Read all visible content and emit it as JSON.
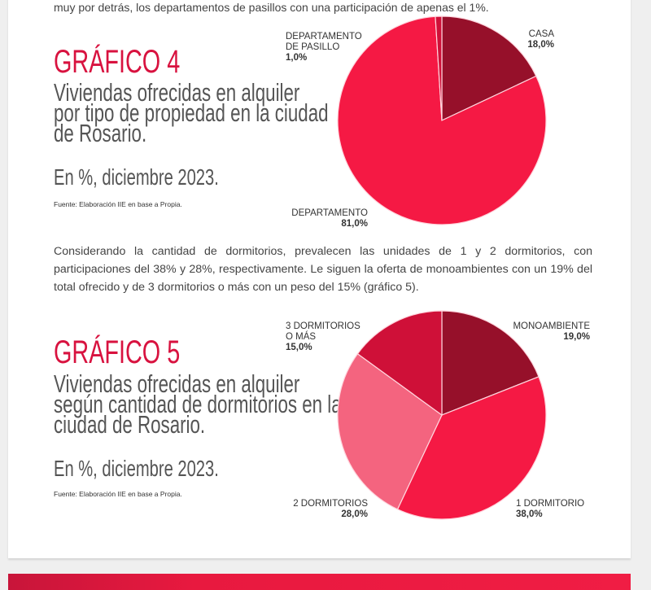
{
  "intro_text": "muy por detrás, los departamentos de pasillos con una participación de apenas el 1%.",
  "grafico4": {
    "title": "GRÁFICO 4",
    "subtitle_lines": [
      "Viviendas ofrecidas en alquiler",
      "por tipo de propiedad en la ciudad",
      "de Rosario."
    ],
    "unit": "En %, diciembre 2023.",
    "source": "Fuente: Elaboración IIE en base a Propia."
  },
  "paragraph": "Considerando la cantidad de dormitorios, prevalecen las unidades de 1 y 2 dormitorios, con participaciones del 38% y 28%, respectivamente. Le siguen la oferta de monoambientes con un 19% del total ofrecido y de 3 dormitorios o más con un peso del 15% (gráfico 5).",
  "grafico5": {
    "title": "GRÁFICO 5",
    "subtitle_lines": [
      "Viviendas ofrecidas en alquiler",
      "según cantidad de dormitorios en la",
      "ciudad de Rosario."
    ],
    "unit": "En %, diciembre 2023.",
    "source": "Fuente: Elaboración IIE en base a Propia."
  },
  "chart_data": [
    {
      "type": "pie",
      "title": "GRÁFICO 4",
      "start": "12 o'clock, clockwise",
      "slices": [
        {
          "label": [
            "CASA"
          ],
          "value": 18.0,
          "value_label": "18,0%",
          "color": "#96102a"
        },
        {
          "label": [
            "DEPARTAMENTO"
          ],
          "value": 81.0,
          "value_label": "81,0%",
          "color": "#f51944"
        },
        {
          "label": [
            "DEPARTAMENTO",
            "DE PASILLO"
          ],
          "value": 1.0,
          "value_label": "1,0%",
          "color": "#cf1038"
        }
      ]
    },
    {
      "type": "pie",
      "title": "GRÁFICO 5",
      "start": "12 o'clock, clockwise",
      "slices": [
        {
          "label": [
            "MONOAMBIENTE"
          ],
          "value": 19.0,
          "value_label": "19,0%",
          "color": "#96102a"
        },
        {
          "label": [
            "1 DORMITORIO"
          ],
          "value": 38.0,
          "value_label": "38,0%",
          "color": "#f51944"
        },
        {
          "label": [
            "2 DORMITORIOS"
          ],
          "value": 28.0,
          "value_label": "28,0%",
          "color": "#f4647f"
        },
        {
          "label": [
            "3 DORMITORIOS",
            "O MÁS"
          ],
          "value": 15.0,
          "value_label": "15,0%",
          "color": "#cf1038"
        }
      ]
    }
  ]
}
